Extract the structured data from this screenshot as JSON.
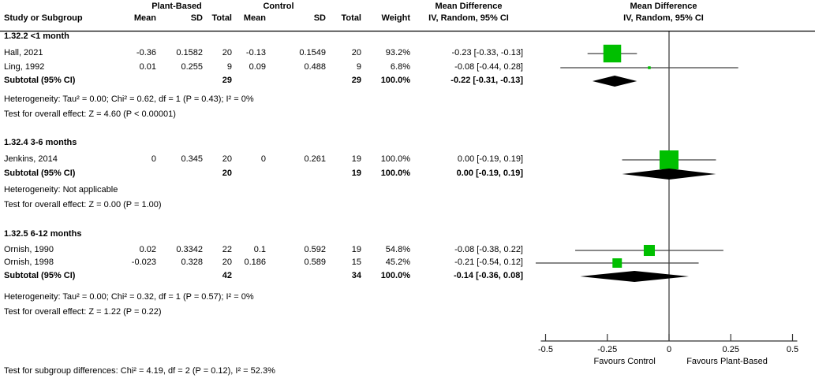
{
  "header": {
    "group1_label": "Plant-Based",
    "group2_label": "Control",
    "mean_diff_label_1": "Mean Difference",
    "mean_diff_label_2": "Mean Difference",
    "col_study": "Study or Subgroup",
    "col_mean": "Mean",
    "col_sd": "SD",
    "col_total": "Total",
    "col_weight": "Weight",
    "col_iv_1": "IV, Random, 95% CI",
    "col_iv_2": "IV, Random, 95% CI"
  },
  "footer": {
    "subgroup_diff": "Test for subgroup differences: Chi² = 4.19, df = 2 (P = 0.12), I² = 52.3%"
  },
  "colors": {
    "square": "#00bf00",
    "diamond": "#000000",
    "ci_line": "#404040",
    "axis_line": "#333333",
    "header_line": "#000000"
  },
  "chart_data": {
    "type": "scatter",
    "subtype": "forest-plot",
    "title": "Mean Difference, IV, Random, 95% CI",
    "axis": {
      "min": -0.5,
      "max": 0.5,
      "ticks": [
        -0.5,
        -0.25,
        0,
        0.25,
        0.5
      ],
      "tick_labels": [
        "-0.5",
        "-0.25",
        "0",
        "0.25",
        "0.5"
      ],
      "favours_left": "Favours Control",
      "favours_right": "Favours Plant-Based"
    },
    "sections": [
      {
        "title": "1.32.2 <1 month",
        "studies": [
          {
            "study": "Hall, 2021",
            "mean1": "-0.36",
            "sd1": "0.1582",
            "total1": "20",
            "mean2": "-0.13",
            "sd2": "0.1549",
            "total2": "20",
            "weight": "93.2%",
            "ci_text": "-0.23 [-0.33, -0.13]",
            "est": -0.23,
            "lo": -0.33,
            "hi": -0.13,
            "weight_val": 93.2
          },
          {
            "study": "Ling, 1992",
            "mean1": "0.01",
            "sd1": "0.255",
            "total1": "9",
            "mean2": "0.09",
            "sd2": "0.488",
            "total2": "9",
            "weight": "6.8%",
            "ci_text": "-0.08 [-0.44, 0.28]",
            "est": -0.08,
            "lo": -0.44,
            "hi": 0.28,
            "weight_val": 6.8
          }
        ],
        "subtotal": {
          "label": "Subtotal (95% CI)",
          "total1": "29",
          "total2": "29",
          "weight": "100.0%",
          "ci_text": "-0.22 [-0.31, -0.13]",
          "est": -0.22,
          "lo": -0.31,
          "hi": -0.13
        },
        "heterogeneity": "Heterogeneity: Tau² = 0.00; Chi² = 0.62, df = 1 (P = 0.43); I² = 0%",
        "overall_effect": "Test for overall effect: Z = 4.60 (P < 0.00001)"
      },
      {
        "title": "1.32.4 3-6 months",
        "studies": [
          {
            "study": "Jenkins, 2014",
            "mean1": "0",
            "sd1": "0.345",
            "total1": "20",
            "mean2": "0",
            "sd2": "0.261",
            "total2": "19",
            "weight": "100.0%",
            "ci_text": "0.00 [-0.19, 0.19]",
            "est": 0,
            "lo": -0.19,
            "hi": 0.19,
            "weight_val": 100.0
          }
        ],
        "subtotal": {
          "label": "Subtotal (95% CI)",
          "total1": "20",
          "total2": "19",
          "weight": "100.0%",
          "ci_text": "0.00 [-0.19, 0.19]",
          "est": 0,
          "lo": -0.19,
          "hi": 0.19
        },
        "heterogeneity": "Heterogeneity: Not applicable",
        "overall_effect": "Test for overall effect: Z = 0.00 (P = 1.00)"
      },
      {
        "title": "1.32.5 6-12 months",
        "studies": [
          {
            "study": "Ornish, 1990",
            "mean1": "0.02",
            "sd1": "0.3342",
            "total1": "22",
            "mean2": "0.1",
            "sd2": "0.592",
            "total2": "19",
            "weight": "54.8%",
            "ci_text": "-0.08 [-0.38, 0.22]",
            "est": -0.08,
            "lo": -0.38,
            "hi": 0.22,
            "weight_val": 54.8
          },
          {
            "study": "Ornish, 1998",
            "mean1": "-0.023",
            "sd1": "0.328",
            "total1": "20",
            "mean2": "0.186",
            "sd2": "0.589",
            "total2": "15",
            "weight": "45.2%",
            "ci_text": "-0.21 [-0.54, 0.12]",
            "est": -0.21,
            "lo": -0.54,
            "hi": 0.12,
            "weight_val": 45.2
          }
        ],
        "subtotal": {
          "label": "Subtotal (95% CI)",
          "total1": "42",
          "total2": "34",
          "weight": "100.0%",
          "ci_text": "-0.14 [-0.36, 0.08]",
          "est": -0.14,
          "lo": -0.36,
          "hi": 0.08
        },
        "heterogeneity": "Heterogeneity: Tau² = 0.00; Chi² = 0.32, df = 1 (P = 0.57); I² = 0%",
        "overall_effect": "Test for overall effect: Z = 1.22 (P = 0.22)"
      }
    ]
  }
}
